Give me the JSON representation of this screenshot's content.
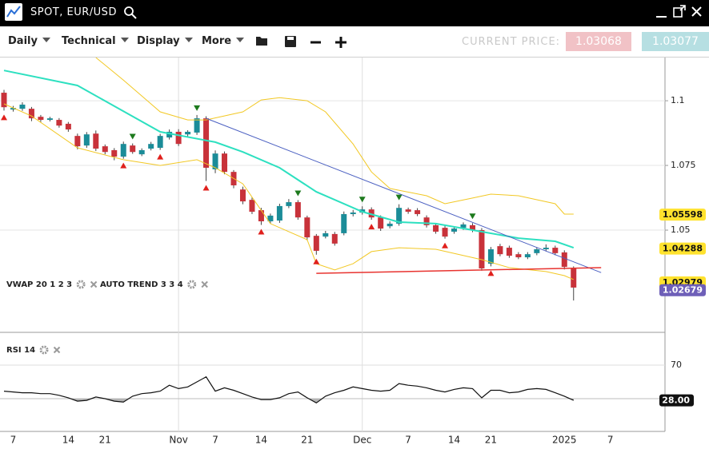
{
  "header": {
    "symbol": "SPOT, EUR/USD"
  },
  "toolbar": {
    "menus": [
      "Daily",
      "Technical",
      "Display",
      "More"
    ],
    "current_price_label": "CURRENT PRICE:",
    "bid": "1.03068",
    "ask": "1.03077"
  },
  "chart_data": [
    {
      "type": "candlestick",
      "legend": [
        "VWAP 20 1 2 3",
        "AUTO TREND 3 3 4"
      ],
      "categories": [
        null,
        "7",
        null,
        null,
        null,
        null,
        null,
        "14",
        null,
        null,
        null,
        "21",
        null,
        null,
        null,
        null,
        null,
        null,
        null,
        "Nov",
        null,
        null,
        null,
        "7",
        null,
        null,
        null,
        null,
        "14",
        null,
        null,
        null,
        null,
        "21",
        null,
        null,
        null,
        null,
        null,
        "Dec",
        null,
        null,
        null,
        null,
        "7",
        null,
        null,
        null,
        null,
        "14",
        null,
        null,
        null,
        "21",
        null,
        null,
        null,
        null,
        null,
        null,
        null,
        "2025",
        null,
        null,
        null,
        null,
        "7"
      ],
      "open": [
        1.1031,
        1.0966,
        1.0969,
        1.0969,
        1.0938,
        1.0926,
        1.0926,
        1.0911,
        1.0864,
        1.0827,
        1.0873,
        1.0824,
        1.0809,
        1.0784,
        1.0827,
        1.0793,
        1.0815,
        1.0818,
        1.0858,
        1.088,
        1.087,
        1.0877,
        1.0932,
        1.0735,
        1.0796,
        1.0725,
        1.0657,
        1.0617,
        1.0577,
        1.0534,
        1.0537,
        1.0593,
        1.0608,
        1.0549,
        1.0478,
        1.0475,
        1.0485,
        1.0488,
        1.0562,
        1.0568,
        1.058,
        1.0549,
        1.0515,
        1.0525,
        1.058,
        1.0577,
        1.0549,
        1.0519,
        1.0509,
        1.0494,
        1.0509,
        1.0519,
        1.05,
        1.037,
        1.0438,
        1.0432,
        1.0407,
        1.0395,
        1.0411,
        1.0426,
        1.0432,
        1.0414,
        1.0352,
        null,
        null,
        null,
        null
      ],
      "high": [
        1.1042,
        1.098,
        1.0994,
        1.0976,
        1.0945,
        1.0938,
        1.0933,
        1.0918,
        1.0873,
        1.0879,
        1.0885,
        1.0831,
        1.0817,
        1.0842,
        1.0835,
        1.0816,
        1.0841,
        1.0872,
        1.0889,
        1.089,
        1.0886,
        1.0945,
        1.094,
        1.0808,
        1.0804,
        1.0732,
        1.0668,
        1.0626,
        1.0586,
        1.0564,
        1.0602,
        1.062,
        1.0616,
        1.0556,
        1.0485,
        1.0497,
        1.0493,
        1.0572,
        1.0578,
        1.0592,
        1.0588,
        1.0557,
        1.0534,
        1.06,
        1.0587,
        1.0585,
        1.0557,
        1.0527,
        1.0517,
        1.0514,
        1.053,
        1.0527,
        1.0508,
        1.0435,
        1.0447,
        1.044,
        1.0415,
        1.0415,
        1.0434,
        1.0445,
        1.044,
        1.0422,
        1.036,
        null,
        null,
        null,
        null
      ],
      "low": [
        1.0962,
        1.0958,
        1.0961,
        1.0921,
        1.0918,
        1.092,
        1.0896,
        1.088,
        1.0812,
        1.0818,
        1.0806,
        1.0793,
        1.077,
        1.0776,
        1.0795,
        1.0786,
        1.0808,
        1.081,
        1.085,
        1.0825,
        1.0862,
        1.0868,
        1.069,
        1.072,
        1.0716,
        1.0662,
        1.06,
        1.0562,
        1.052,
        1.0526,
        1.0528,
        1.0585,
        1.054,
        1.046,
        1.0405,
        1.0468,
        1.044,
        1.048,
        1.0553,
        1.056,
        1.054,
        1.0497,
        1.0507,
        1.0517,
        1.0563,
        1.0554,
        1.051,
        1.0486,
        1.0467,
        1.0486,
        1.0501,
        1.0492,
        1.0343,
        1.036,
        1.0399,
        1.0393,
        1.0388,
        1.0388,
        1.0403,
        1.0418,
        1.0403,
        1.0348,
        1.0228,
        null,
        null,
        null,
        null
      ],
      "close": [
        1.0975,
        1.0972,
        1.0985,
        1.0932,
        1.0926,
        1.0932,
        1.0904,
        1.0889,
        1.0824,
        1.087,
        1.0815,
        1.0802,
        1.0784,
        1.0833,
        1.0802,
        1.0809,
        1.0833,
        1.0864,
        1.088,
        1.0833,
        1.088,
        1.0932,
        1.0741,
        1.0796,
        1.0725,
        1.0673,
        1.0611,
        1.0571,
        1.0534,
        1.0556,
        1.0593,
        1.0608,
        1.0549,
        1.0472,
        1.042,
        1.0488,
        1.0448,
        1.0562,
        1.0568,
        1.058,
        1.0549,
        1.0506,
        1.0525,
        1.0586,
        1.0571,
        1.0562,
        1.0519,
        1.0494,
        1.0475,
        1.0506,
        1.0522,
        1.05,
        1.0352,
        1.0426,
        1.0407,
        1.0401,
        1.0395,
        1.0407,
        1.0426,
        1.0432,
        1.0411,
        1.0358,
        1.0278,
        null,
        null,
        null,
        null
      ],
      "up_color": "#1b8c98",
      "down_color": "#c8323a",
      "overlays": [
        {
          "color": "#2de0c0",
          "width": 2,
          "x": [
            0,
            8,
            17,
            23,
            26,
            30,
            34,
            39,
            43,
            47,
            52,
            56,
            60,
            62
          ],
          "values": [
            1.1117,
            1.1059,
            1.088,
            1.084,
            1.0802,
            1.0741,
            1.0648,
            1.0571,
            1.0531,
            1.0525,
            1.0494,
            1.0469,
            1.0457,
            1.0432
          ]
        },
        {
          "color": "#f2c824",
          "width": 1,
          "x": [
            10,
            13,
            17,
            20,
            22,
            26,
            28,
            30,
            33,
            35,
            38,
            40,
            42,
            46,
            48,
            51,
            53,
            56,
            60,
            61,
            62
          ],
          "values": [
            1.1167,
            1.108,
            1.0957,
            1.0926,
            1.0926,
            1.0957,
            1.1003,
            1.1012,
            1.1,
            1.0957,
            1.0833,
            1.0725,
            1.0661,
            1.0633,
            1.0602,
            1.0624,
            1.0639,
            1.0633,
            1.0602,
            1.0562,
            1.0562
          ]
        },
        {
          "color": "#f2c824",
          "width": 1,
          "x": [
            0,
            3,
            8,
            13,
            17,
            21,
            23,
            26,
            29,
            33,
            34,
            36,
            38,
            40,
            43,
            47,
            52,
            55,
            59,
            61,
            62
          ],
          "values": [
            1.0988,
            1.0941,
            1.0818,
            1.0772,
            1.075,
            1.0772,
            1.0741,
            1.0679,
            1.0525,
            1.0463,
            1.037,
            1.0346,
            1.037,
            1.0417,
            1.0432,
            1.0426,
            1.0386,
            1.0355,
            1.034,
            1.0324,
            1.0309
          ]
        },
        {
          "color": "#4a5fc1",
          "width": 1,
          "x": [
            22,
            65
          ],
          "values": [
            1.0932,
            1.0336
          ]
        },
        {
          "color": "#e8332f",
          "width": 1.5,
          "x": [
            34,
            65
          ],
          "values": [
            1.0333,
            1.0355
          ]
        }
      ],
      "up_signals": [
        0,
        13,
        17,
        22,
        28,
        34,
        40,
        48,
        53
      ],
      "up_signal_color": "#e0201c",
      "down_signals": [
        14,
        21,
        32,
        39,
        43,
        51
      ],
      "down_signal_color": "#1d7a1d",
      "price_markers": [
        {
          "value": 1.05598,
          "color": "#ffe22e",
          "text_color": "#111111"
        },
        {
          "value": 1.04288,
          "color": "#ffe22e",
          "text_color": "#111111"
        },
        {
          "value": 1.02979,
          "color": "#ffe22e",
          "text_color": "#111111"
        },
        {
          "value": 1.02679,
          "color": "#6e5fb8",
          "text_color": "#ffffff"
        }
      ],
      "ylim": [
        1.0108,
        1.1167
      ],
      "yticks": [
        1.05,
        1.075,
        1.1
      ],
      "grid": true
    },
    {
      "type": "line",
      "title": "RSI 14",
      "color": "#111111",
      "values": [
        39,
        38,
        37,
        37,
        36,
        36,
        34,
        31,
        27,
        28,
        32,
        30,
        27,
        26,
        33,
        36,
        37,
        39,
        46,
        42,
        44,
        50,
        56,
        39,
        43,
        40,
        36,
        32,
        29,
        29,
        31,
        36,
        38,
        31,
        25,
        33,
        37,
        40,
        44,
        42,
        40,
        39,
        40,
        48,
        46,
        45,
        43,
        40,
        38,
        41,
        43,
        42,
        31,
        40,
        40,
        37,
        38,
        41,
        42,
        41,
        37,
        33,
        28
      ],
      "ylim": [
        0,
        100
      ],
      "yticks": [
        70
      ],
      "oversold_level": 30,
      "fill_color": "#b5b5b5",
      "last_label": {
        "value": 28,
        "label": "28.00"
      },
      "grid": true
    }
  ]
}
